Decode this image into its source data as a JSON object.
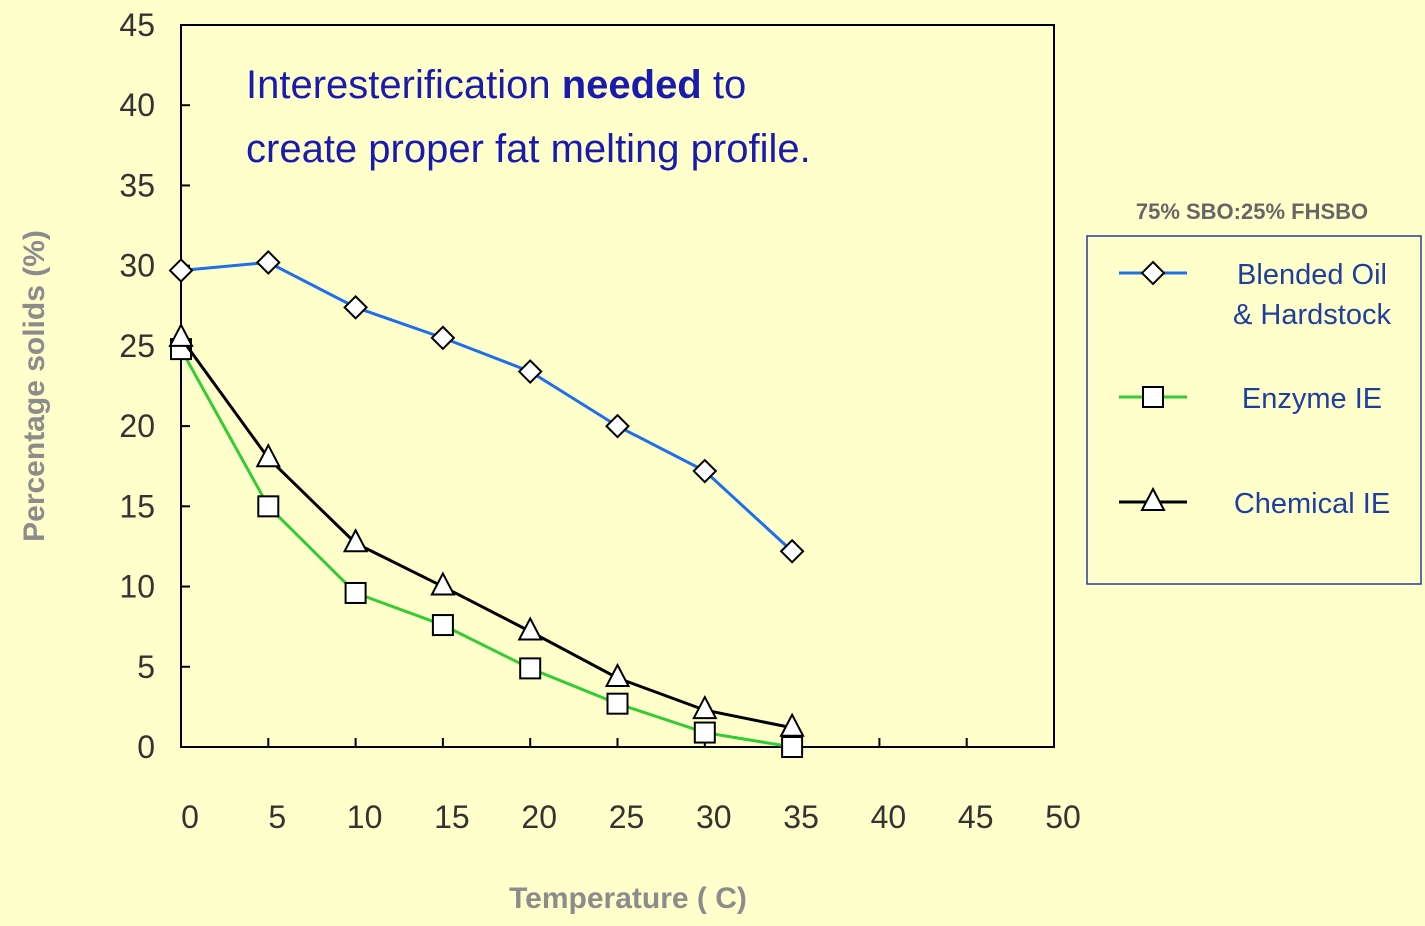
{
  "chart_data": {
    "type": "line",
    "annotation": {
      "line1_pre": "Interesterification ",
      "line1_bold": "needed",
      "line1_post": " to",
      "line2": "create proper fat melting profile."
    },
    "xlabel": "Temperature ( C)",
    "ylabel": "Percentage solids (%)",
    "x_ticks": [
      "0",
      "5",
      "10",
      "15",
      "20",
      "25",
      "30",
      "35",
      "40",
      "45",
      "50"
    ],
    "y_ticks": [
      "0",
      "5",
      "10",
      "15",
      "20",
      "25",
      "30",
      "35",
      "40",
      "45"
    ],
    "ylim": [
      0,
      45
    ],
    "legend_title": "75% SBO:25% FHSBO",
    "legend_placement": "right",
    "grid": false,
    "x_categories": [
      0,
      10,
      20,
      25,
      30,
      35,
      40,
      45
    ],
    "series": [
      {
        "name_lines": [
          "Blended Oil",
          "& Hardstock"
        ],
        "color": "#1E6FE8",
        "marker": "diamond",
        "values": [
          29.7,
          30.2,
          27.4,
          25.5,
          23.4,
          20.0,
          17.2,
          12.2
        ]
      },
      {
        "name_lines": [
          "Enzyme IE"
        ],
        "color": "#33CC33",
        "marker": "square",
        "values": [
          24.8,
          15.0,
          9.6,
          7.6,
          4.9,
          2.7,
          0.9,
          0.0
        ]
      },
      {
        "name_lines": [
          "Chemical IE"
        ],
        "color": "#000000",
        "marker": "triangle",
        "values": [
          25.5,
          18.0,
          12.7,
          10.0,
          7.2,
          4.3,
          2.3,
          1.2
        ]
      }
    ]
  }
}
